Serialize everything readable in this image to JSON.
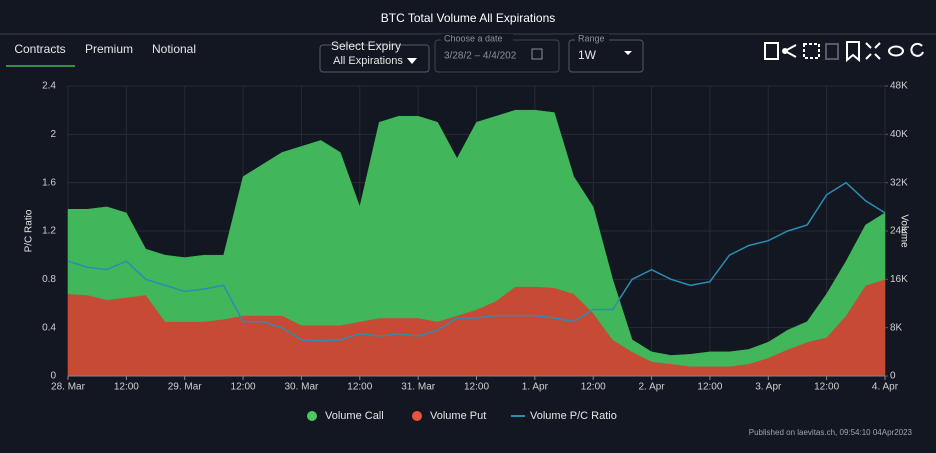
{
  "ui": {
    "tabs": [
      "Contracts",
      "Premium",
      "Notional"
    ],
    "expiry_label": "Select Expiry",
    "expiry_value": "All Expirations",
    "date_label": "Choose a date",
    "date_value": "3/28/2 – 4/4/202",
    "range_label": "Range",
    "range_value": "1W",
    "footer": "Published on laevitas.ch, 09:54:10 04Apr2023"
  },
  "chart_data": {
    "type": "area",
    "title": "BTC Total Volume All Expirations",
    "y_label": "P/C Ratio",
    "y2_label": "Volume",
    "stacked": true,
    "grid": true,
    "legend": "bottom",
    "x": [
      0,
      4,
      8,
      12,
      16,
      20,
      24,
      28,
      32,
      36,
      40,
      44,
      48,
      52,
      56,
      60,
      64,
      68,
      72,
      76,
      80,
      84,
      88,
      92,
      96,
      100,
      104,
      108,
      112,
      116,
      120,
      124,
      128,
      132,
      136,
      140,
      144,
      148,
      152,
      156,
      160,
      164,
      168
    ],
    "xlim": [
      0,
      168
    ],
    "xticks": [
      {
        "value": 0,
        "label": "28. Mar"
      },
      {
        "value": 12,
        "label": "12:00"
      },
      {
        "value": 24,
        "label": "29. Mar"
      },
      {
        "value": 36,
        "label": "12:00"
      },
      {
        "value": 48,
        "label": "30. Mar"
      },
      {
        "value": 60,
        "label": "12:00"
      },
      {
        "value": 72,
        "label": "31. Mar"
      },
      {
        "value": 84,
        "label": "12:00"
      },
      {
        "value": 96,
        "label": "1. Apr"
      },
      {
        "value": 108,
        "label": "12:00"
      },
      {
        "value": 120,
        "label": "2. Apr"
      },
      {
        "value": 132,
        "label": "12:00"
      },
      {
        "value": 144,
        "label": "3. Apr"
      },
      {
        "value": 156,
        "label": "12:00"
      },
      {
        "value": 168,
        "label": "4. Apr"
      }
    ],
    "ylim": [
      0,
      2.4
    ],
    "yticks": [
      0,
      0.4,
      0.8,
      1.2,
      1.6,
      2,
      2.4
    ],
    "y2lim": [
      0,
      48000
    ],
    "y2ticks": [
      {
        "value": 0,
        "label": "0"
      },
      {
        "value": 8000,
        "label": "8K"
      },
      {
        "value": 16000,
        "label": "16K"
      },
      {
        "value": 24000,
        "label": "24K"
      },
      {
        "value": 32000,
        "label": "32K"
      },
      {
        "value": 40000,
        "label": "40K"
      },
      {
        "value": 48000,
        "label": "48K"
      }
    ],
    "series": [
      {
        "name": "Volume Put",
        "type": "area",
        "axis": "y2",
        "color": "#c64a34",
        "legend_color": "#e8553f",
        "values": [
          13600,
          13400,
          12600,
          13000,
          13400,
          9000,
          9000,
          9000,
          9400,
          10000,
          10000,
          10000,
          8400,
          8400,
          8400,
          9000,
          9600,
          9600,
          9600,
          9000,
          10000,
          11000,
          12400,
          14800,
          14800,
          14600,
          13600,
          10400,
          6000,
          4000,
          2400,
          2000,
          1600,
          1600,
          1600,
          2000,
          3000,
          4400,
          5600,
          6400,
          10000,
          15000,
          16000
        ]
      },
      {
        "name": "Volume Call",
        "type": "area",
        "axis": "y2",
        "color": "#41b65a",
        "legend_color": "#4cc961",
        "values": [
          14000,
          14200,
          15400,
          14000,
          7600,
          11000,
          10600,
          11000,
          10600,
          23000,
          25000,
          27000,
          29600,
          30600,
          28600,
          19000,
          32400,
          33400,
          33400,
          33000,
          26000,
          31000,
          30600,
          29200,
          29200,
          29000,
          19400,
          17600,
          10000,
          2000,
          1600,
          1400,
          2000,
          2400,
          2400,
          2400,
          2600,
          3200,
          3400,
          7200,
          9000,
          10000,
          11000
        ]
      },
      {
        "name": "Volume P/C Ratio",
        "type": "line",
        "axis": "y",
        "color": "#2b8db5",
        "legend_color": "#2b8db5",
        "values": [
          0.95,
          0.9,
          0.88,
          0.95,
          0.8,
          0.75,
          0.7,
          0.72,
          0.75,
          0.45,
          0.45,
          0.4,
          0.3,
          0.29,
          0.3,
          0.35,
          0.33,
          0.35,
          0.33,
          0.38,
          0.48,
          0.48,
          0.5,
          0.5,
          0.5,
          0.48,
          0.45,
          0.55,
          0.55,
          0.8,
          0.88,
          0.8,
          0.75,
          0.78,
          1.0,
          1.08,
          1.12,
          1.2,
          1.25,
          1.5,
          1.6,
          1.45,
          1.35
        ]
      }
    ],
    "legend_order": [
      1,
      0,
      2
    ]
  }
}
